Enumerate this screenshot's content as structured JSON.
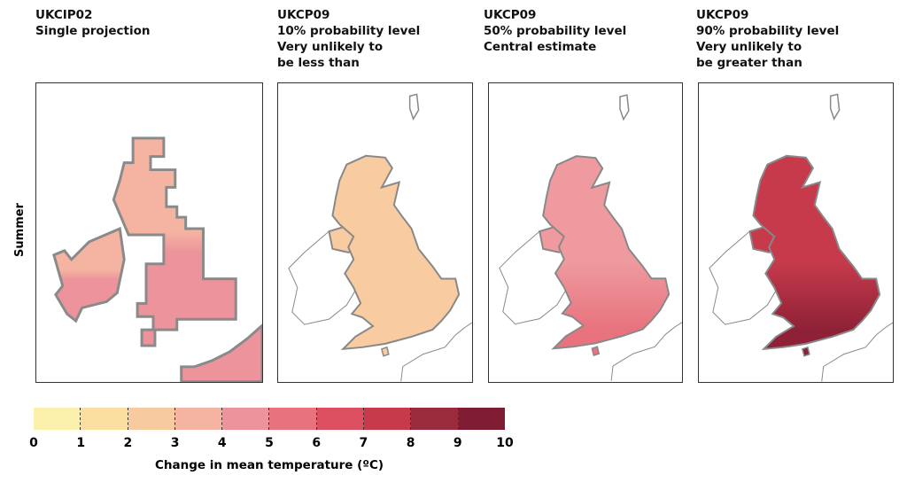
{
  "panels": [
    {
      "lines": [
        "UKCIP02",
        "Single projection"
      ],
      "fill_north": "#f4b4a1",
      "fill_south": "#ec939b"
    },
    {
      "lines": [
        "UKCP09",
        "10% probability level",
        "Very unlikely to",
        "be less than"
      ],
      "fill_north": "#f8cba0",
      "fill_south": "#f8cba0"
    },
    {
      "lines": [
        "UKCP09",
        "50% probability level",
        "Central estimate"
      ],
      "fill_north": "#ee9a9e",
      "fill_south": "#e8737f"
    },
    {
      "lines": [
        "UKCP09",
        "90% probability level",
        "Very unlikely to",
        "be greater than"
      ],
      "fill_north": "#c63a4c",
      "fill_south": "#8f2136"
    }
  ],
  "row_label": "Summer",
  "legend": {
    "ticks": [
      "0",
      "1",
      "2",
      "3",
      "4",
      "5",
      "6",
      "7",
      "8",
      "9",
      "10"
    ],
    "colors": [
      "#fbf1ac",
      "#fadfa0",
      "#f8caa0",
      "#f4b4a1",
      "#ec939b",
      "#e8737f",
      "#dc4f60",
      "#c63a4c",
      "#9a2b3c",
      "#7d1c32"
    ],
    "caption": "Change in mean temperature (ºC)"
  }
}
